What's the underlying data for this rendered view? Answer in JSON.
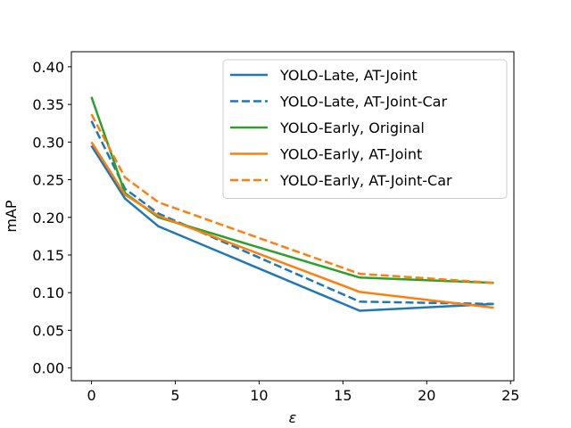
{
  "chart_data": {
    "type": "line",
    "title": "",
    "xlabel": "ε",
    "ylabel": "mAP",
    "xlim": [
      -1.2,
      25.2
    ],
    "ylim": [
      -0.017,
      0.42
    ],
    "xticks": [
      0,
      5,
      10,
      15,
      20,
      25
    ],
    "xtick_labels": [
      "0",
      "5",
      "10",
      "15",
      "20",
      "25"
    ],
    "yticks": [
      0.0,
      0.05,
      0.1,
      0.15,
      0.2,
      0.25,
      0.3,
      0.35,
      0.4
    ],
    "ytick_labels": [
      "0.00",
      "0.05",
      "0.10",
      "0.15",
      "0.20",
      "0.25",
      "0.30",
      "0.35",
      "0.40"
    ],
    "grid": false,
    "legend_position": "top-right",
    "series": [
      {
        "name": "YOLO-Late, AT-Joint",
        "color": "#1f77b4",
        "dash": "solid",
        "x": [
          0,
          2,
          4,
          16,
          24
        ],
        "y": [
          0.295,
          0.225,
          0.188,
          0.076,
          0.085
        ]
      },
      {
        "name": "YOLO-Late, AT-Joint-Car",
        "color": "#1f77b4",
        "dash": "dashed",
        "x": [
          0,
          2,
          4,
          16,
          24
        ],
        "y": [
          0.328,
          0.238,
          0.205,
          0.088,
          0.085
        ]
      },
      {
        "name": "YOLO-Early, Original",
        "color": "#2ca02c",
        "dash": "solid",
        "x": [
          0,
          2,
          4,
          16,
          24
        ],
        "y": [
          0.36,
          0.232,
          0.2,
          0.12,
          0.113
        ]
      },
      {
        "name": "YOLO-Early, AT-Joint",
        "color": "#ff7f0e",
        "dash": "solid",
        "x": [
          0,
          2,
          4,
          16,
          24
        ],
        "y": [
          0.3,
          0.23,
          0.202,
          0.101,
          0.08
        ]
      },
      {
        "name": "YOLO-Early, AT-Joint-Car",
        "color": "#ff7f0e",
        "dash": "dashed",
        "x": [
          0,
          2,
          4,
          16,
          24
        ],
        "y": [
          0.337,
          0.253,
          0.22,
          0.125,
          0.113
        ]
      }
    ]
  }
}
